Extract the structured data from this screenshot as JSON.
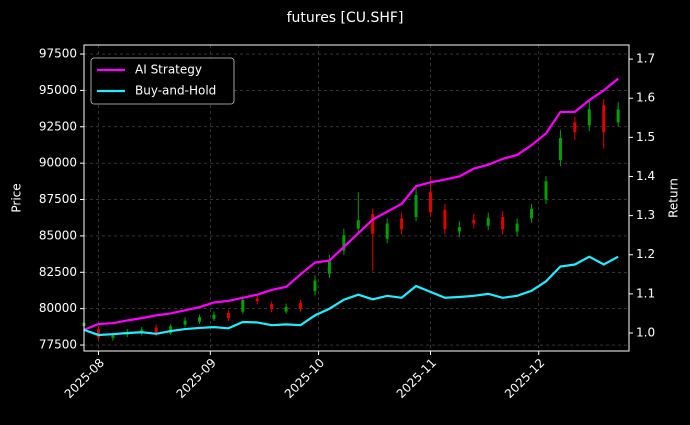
{
  "chart_data": {
    "type": "candlestick",
    "title": "futures [CU.SHF]",
    "y_label": "Price",
    "y2_label": "Return",
    "x": [
      0,
      4,
      8,
      12,
      16,
      20,
      24,
      28,
      32,
      36,
      40,
      44,
      48,
      52,
      56,
      60,
      64,
      68,
      72,
      76,
      80,
      84,
      88,
      92,
      96,
      100,
      104,
      108,
      112,
      116,
      120,
      124,
      128,
      132,
      136,
      140,
      144,
      148
    ],
    "xlim": [
      0,
      151
    ],
    "xticks": [
      {
        "value": 4,
        "label": "2025-08"
      },
      {
        "value": 35,
        "label": "2025-09"
      },
      {
        "value": 65,
        "label": "2025-10"
      },
      {
        "value": 96,
        "label": "2025-11"
      },
      {
        "value": 126,
        "label": "2025-12"
      }
    ],
    "ylim": [
      77090,
      98120
    ],
    "yticks": [
      77500,
      80000,
      82500,
      85000,
      87500,
      90000,
      92500,
      95000,
      97500
    ],
    "y2lim": [
      0.954,
      1.736
    ],
    "y2ticks": [
      {
        "value": 1,
        "label": "1.0"
      },
      1.1,
      1.2,
      1.3,
      1.4,
      1.5,
      1.6,
      1.7
    ],
    "grid": true,
    "legend": "upper left",
    "up_color": "#00a000",
    "down_color": "#e00000",
    "candles": {
      "open": [
        78800,
        78600,
        78000,
        78200,
        78300,
        78700,
        78300,
        78900,
        79100,
        79300,
        79700,
        79800,
        80700,
        80300,
        79800,
        80400,
        81200,
        82400,
        84000,
        85500,
        86500,
        84800,
        86200,
        86300,
        88000,
        86800,
        85300,
        86100,
        85700,
        86300,
        85300,
        86200,
        87500,
        90200,
        92800,
        92600,
        94000,
        92800
      ],
      "high": [
        79250,
        78800,
        78350,
        78600,
        78750,
        78900,
        78950,
        79400,
        79600,
        79800,
        79900,
        80850,
        80950,
        80500,
        80350,
        80600,
        82300,
        83700,
        85500,
        88000,
        86900,
        86200,
        86600,
        88300,
        89100,
        87200,
        86000,
        86500,
        86600,
        86700,
        86200,
        87200,
        89100,
        92300,
        93200,
        94300,
        94400,
        94200
      ],
      "low": [
        78600,
        77850,
        77800,
        78050,
        78150,
        78100,
        78200,
        78750,
        78950,
        79150,
        79150,
        79650,
        80300,
        79750,
        79650,
        79800,
        80900,
        82100,
        83700,
        85200,
        82600,
        84500,
        85100,
        86000,
        86300,
        85100,
        84900,
        85500,
        85400,
        85100,
        85000,
        85900,
        87200,
        89800,
        91600,
        92200,
        91000,
        92500
      ],
      "close": [
        79030,
        78010,
        78160,
        78400,
        78560,
        78240,
        78790,
        79180,
        79420,
        79580,
        79340,
        80600,
        80520,
        79970,
        80120,
        79970,
        81930,
        83260,
        85060,
        86080,
        85140,
        85850,
        85460,
        87810,
        86630,
        85460,
        85610,
        85850,
        86240,
        85460,
        85850,
        86870,
        88750,
        91730,
        92120,
        93690,
        92120,
        93690
      ]
    },
    "series": [
      {
        "name": "AI Strategy",
        "color": "#ff00ff",
        "axis": "y2",
        "values": [
          1.008,
          1.023,
          1.025,
          1.032,
          1.038,
          1.045,
          1.05,
          1.058,
          1.066,
          1.078,
          1.082,
          1.09,
          1.098,
          1.11,
          1.118,
          1.15,
          1.18,
          1.185,
          1.22,
          1.255,
          1.29,
          1.31,
          1.33,
          1.375,
          1.385,
          1.392,
          1.4,
          1.42,
          1.43,
          1.445,
          1.455,
          1.48,
          1.51,
          1.565,
          1.565,
          1.595,
          1.62,
          1.65
        ]
      },
      {
        "name": "Buy-and-Hold",
        "color": "#22eeff",
        "axis": "y2",
        "values": [
          1.008,
          0.995,
          0.997,
          1.0,
          1.002,
          0.998,
          1.005,
          1.01,
          1.013,
          1.015,
          1.012,
          1.028,
          1.027,
          1.02,
          1.022,
          1.02,
          1.045,
          1.062,
          1.085,
          1.098,
          1.086,
          1.095,
          1.09,
          1.12,
          1.105,
          1.09,
          1.092,
          1.095,
          1.1,
          1.09,
          1.095,
          1.108,
          1.132,
          1.17,
          1.175,
          1.195,
          1.175,
          1.195
        ]
      }
    ]
  }
}
